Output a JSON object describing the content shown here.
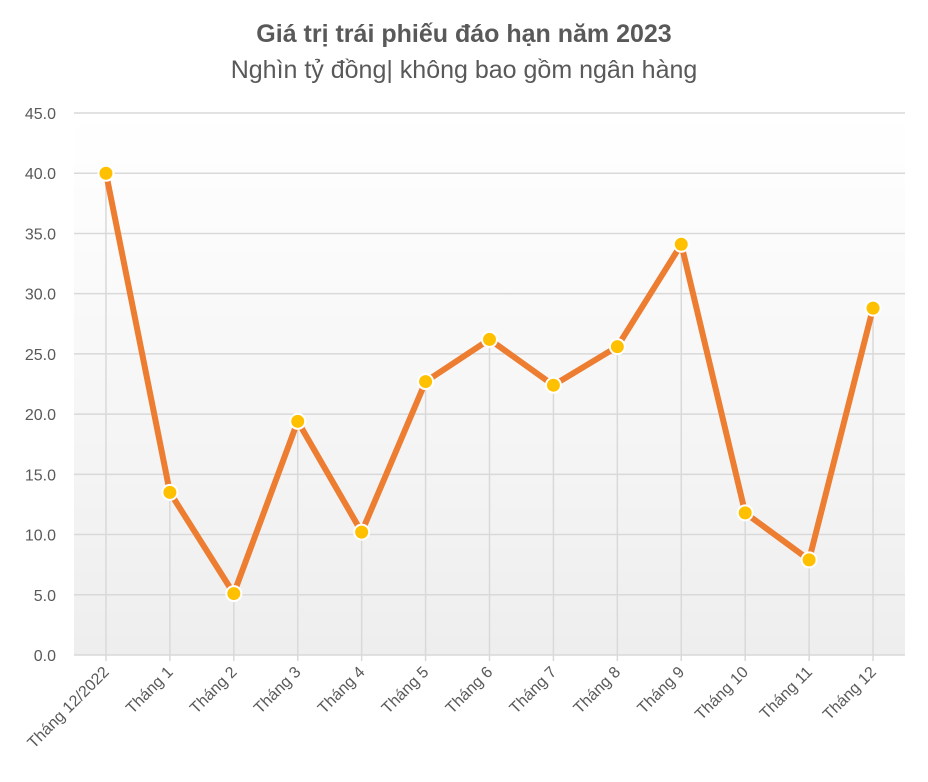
{
  "chart_data": {
    "type": "line",
    "title": "Giá trị trái phiếu đáo hạn năm 2023",
    "subtitle": "Nghìn tỷ đồng| không bao gồm ngân hàng",
    "xlabel": "",
    "ylabel": "",
    "categories": [
      "Tháng 12/2022",
      "Tháng 1",
      "Tháng 2",
      "Tháng 3",
      "Tháng 4",
      "Tháng 5",
      "Tháng 6",
      "Tháng 7",
      "Tháng 8",
      "Tháng 9",
      "Tháng 10",
      "Tháng 11",
      "Tháng 12"
    ],
    "values": [
      40.0,
      13.5,
      5.1,
      19.4,
      10.2,
      22.7,
      26.2,
      22.4,
      25.6,
      34.1,
      11.8,
      7.9,
      28.8
    ],
    "ylim": [
      0,
      45
    ],
    "yticks": [
      "0.0",
      "5.0",
      "10.0",
      "15.0",
      "20.0",
      "25.0",
      "30.0",
      "35.0",
      "40.0",
      "45.0"
    ],
    "grid": true,
    "legend": "none",
    "colors": {
      "line": "#ED7D31",
      "marker_fill": "#FFC000",
      "marker_stroke": "#FFFFFF",
      "grid": "#D9D9D9",
      "text": "#595959"
    }
  }
}
